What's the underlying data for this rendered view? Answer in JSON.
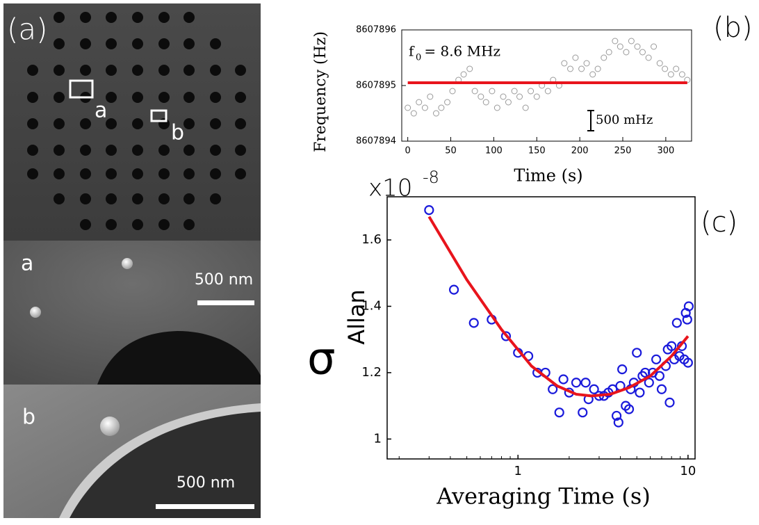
{
  "panel_a": {
    "label": "(a)",
    "box_a": "a",
    "box_b": "b",
    "inset_a": {
      "label": "a",
      "scale": "500 nm"
    },
    "inset_b": {
      "label": "b",
      "scale": "500 nm"
    }
  },
  "chart_data": [
    {
      "type": "scatter",
      "panel": "(b)",
      "ylabel": "Frequency (Hz)",
      "xlabel": "Time (s)",
      "annotation": {
        "f": "f",
        "sub": "0",
        "rest": " = 8.6 MHz",
        "scale_bar": "500 mHz"
      },
      "xlim": [
        -7,
        330
      ],
      "xticks": [
        0,
        50,
        100,
        150,
        200,
        250,
        300
      ],
      "ylim": [
        8607894,
        8607896
      ],
      "yticks": [
        8607894,
        8607895,
        8607896
      ],
      "series": [
        {
          "color": "#555555",
          "x": [
            0,
            7,
            13,
            20,
            26,
            33,
            39,
            46,
            52,
            59,
            65,
            72,
            78,
            85,
            91,
            98,
            104,
            111,
            117,
            124,
            130,
            137,
            143,
            150,
            156,
            163,
            169,
            176,
            182,
            189,
            195,
            202,
            208,
            215,
            221,
            228,
            234,
            241,
            247,
            254,
            260,
            267,
            273,
            280,
            286,
            293,
            299,
            306,
            312,
            319,
            325
          ],
          "values": [
            8607894.6,
            8607894.5,
            8607894.7,
            8607894.6,
            8607894.8,
            8607894.5,
            8607894.6,
            8607894.7,
            8607894.9,
            8607895.1,
            8607895.2,
            8607895.3,
            8607894.9,
            8607894.8,
            8607894.7,
            8607894.9,
            8607894.6,
            8607894.8,
            8607894.7,
            8607894.9,
            8607894.8,
            8607894.6,
            8607894.9,
            8607894.8,
            8607895.0,
            8607894.9,
            8607895.1,
            8607895.0,
            8607895.4,
            8607895.3,
            8607895.5,
            8607895.3,
            8607895.4,
            8607895.2,
            8607895.3,
            8607895.5,
            8607895.6,
            8607895.8,
            8607895.7,
            8607895.6,
            8607895.8,
            8607895.7,
            8607895.6,
            8607895.5,
            8607895.7,
            8607895.4,
            8607895.3,
            8607895.2,
            8607895.3,
            8607895.2,
            8607895.1
          ]
        },
        {
          "color": "#e8141c",
          "line": true,
          "x": [
            0,
            325
          ],
          "values": [
            8607895.05,
            8607895.05
          ]
        }
      ]
    },
    {
      "type": "scatter",
      "panel": "(c)",
      "ylabel": "σ",
      "ylabel_sub": "Allan",
      "xlabel": "Averaging Time (s)",
      "multiplier": "x10",
      "exponent": "-8",
      "xscale": "log",
      "xlim": [
        0.17,
        11
      ],
      "xticks": [
        1,
        10
      ],
      "ylim": [
        0.94,
        1.73
      ],
      "yticks": [
        1,
        1.2,
        1.4,
        1.6
      ],
      "series": [
        {
          "color": "#1a1adb",
          "x": [
            0.3,
            0.42,
            0.55,
            0.7,
            0.85,
            1.0,
            1.15,
            1.3,
            1.45,
            1.6,
            1.75,
            1.85,
            2.0,
            2.2,
            2.4,
            2.5,
            2.6,
            2.8,
            3.0,
            3.2,
            3.4,
            3.6,
            3.8,
            3.9,
            4.0,
            4.1,
            4.3,
            4.5,
            4.6,
            4.8,
            5.0,
            5.2,
            5.4,
            5.6,
            5.9,
            6.2,
            6.5,
            6.8,
            7.0,
            7.4,
            7.6,
            7.8,
            8.0,
            8.3,
            8.6,
            8.9,
            9.2,
            9.5,
            9.7,
            9.9,
            10.1,
            10.0
          ],
          "values": [
            1.69,
            1.45,
            1.35,
            1.36,
            1.31,
            1.26,
            1.25,
            1.2,
            1.2,
            1.15,
            1.08,
            1.18,
            1.14,
            1.17,
            1.08,
            1.17,
            1.12,
            1.15,
            1.13,
            1.13,
            1.14,
            1.15,
            1.07,
            1.05,
            1.16,
            1.21,
            1.1,
            1.09,
            1.15,
            1.17,
            1.26,
            1.14,
            1.19,
            1.2,
            1.17,
            1.2,
            1.24,
            1.19,
            1.15,
            1.22,
            1.27,
            1.11,
            1.28,
            1.24,
            1.35,
            1.25,
            1.28,
            1.24,
            1.38,
            1.36,
            1.4,
            1.23
          ]
        },
        {
          "color": "#e8141c",
          "line": true,
          "x": [
            0.3,
            0.5,
            0.8,
            1.2,
            1.7,
            2.2,
            2.7,
            3.5,
            4.5,
            6,
            8,
            10
          ],
          "values": [
            1.67,
            1.48,
            1.33,
            1.22,
            1.16,
            1.135,
            1.13,
            1.135,
            1.155,
            1.19,
            1.25,
            1.31
          ]
        }
      ]
    }
  ]
}
